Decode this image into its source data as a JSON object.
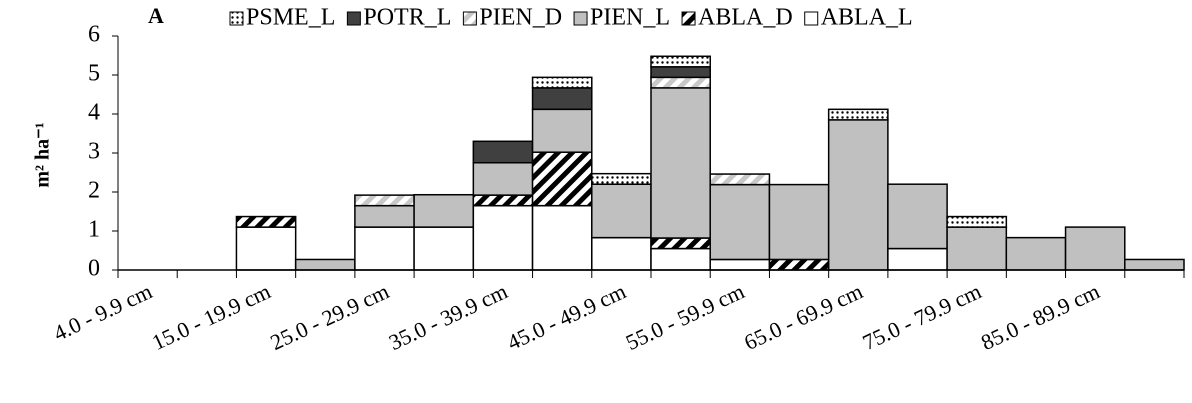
{
  "chart_data": {
    "type": "stacked-bar",
    "annotation": "A",
    "ylabel": "m² ha⁻¹",
    "categories": [
      "4.0 - 9.9 cm",
      null,
      "15.0 - 19.9 cm",
      null,
      "25.0 - 29.9 cm",
      null,
      "35.0 - 39.9 cm",
      null,
      "45.0 - 49.9 cm",
      null,
      "55.0 - 59.9 cm",
      null,
      "65.0 - 69.9 cm",
      null,
      "75.0 - 79.9 cm",
      null,
      "85.0 - 89.9 cm",
      null
    ],
    "series": [
      {
        "name": "ABLA_L",
        "color": "#ffffff",
        "values": [
          0,
          0,
          1.1,
          0,
          1.1,
          1.1,
          1.65,
          1.65,
          0.83,
          0.55,
          0.27,
          0,
          0,
          0.55,
          0,
          0,
          0,
          0
        ]
      },
      {
        "name": "ABLA_D",
        "color": "#000000",
        "pattern": "diagonal",
        "values": [
          0,
          0,
          0.27,
          0,
          0,
          0,
          0.27,
          1.37,
          0,
          0.27,
          0,
          0.27,
          0,
          0,
          0,
          0,
          0,
          0
        ]
      },
      {
        "name": "PIEN_L",
        "color": "#c0c0c0",
        "values": [
          0,
          0,
          0,
          0.27,
          0.55,
          0.83,
          0.83,
          1.1,
          1.37,
          3.85,
          1.92,
          1.92,
          3.85,
          1.65,
          1.1,
          0.83,
          1.1,
          0.27
        ]
      },
      {
        "name": "PIEN_D",
        "color": "#c8c8c8",
        "pattern": "diagonal",
        "values": [
          0,
          0,
          0,
          0,
          0.27,
          0,
          0,
          0,
          0,
          0.27,
          0.27,
          0,
          0,
          0,
          0,
          0,
          0,
          0
        ]
      },
      {
        "name": "POTR_L",
        "color": "#404040",
        "values": [
          0,
          0,
          0,
          0,
          0,
          0,
          0.55,
          0.55,
          0,
          0.27,
          0,
          0,
          0,
          0,
          0,
          0,
          0,
          0
        ]
      },
      {
        "name": "PSME_L",
        "color": "#000000",
        "pattern": "dots",
        "values": [
          0,
          0,
          0,
          0,
          0,
          0,
          0,
          0.27,
          0.27,
          0.27,
          0,
          0,
          0.27,
          0,
          0.27,
          0,
          0,
          0
        ]
      }
    ],
    "ylim": [
      0,
      6
    ],
    "yticks": [
      0,
      1,
      2,
      3,
      4,
      5,
      6
    ]
  }
}
